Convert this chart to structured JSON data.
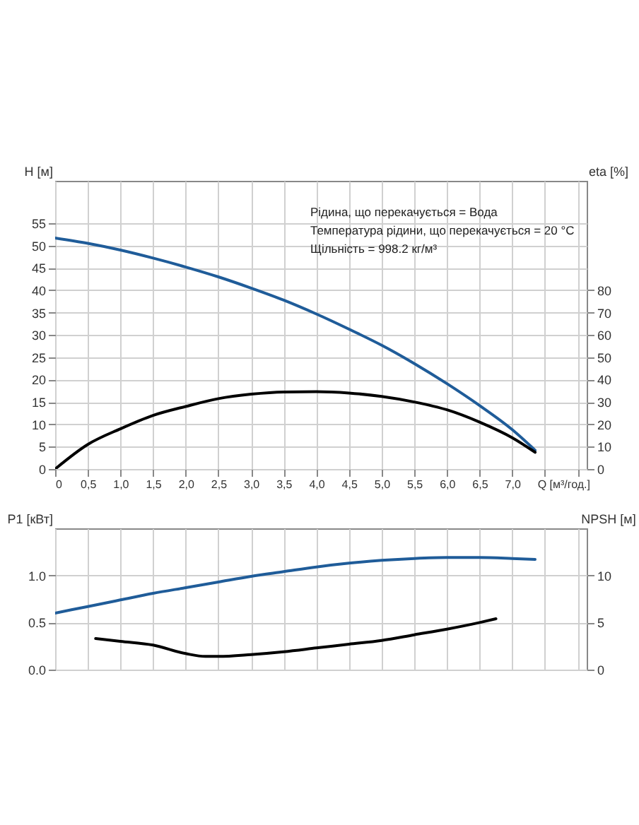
{
  "chart_data": [
    {
      "type": "line",
      "xlabel": "Q [м³/год.]",
      "ylabel": "H [м]",
      "y2label": "eta [%]",
      "grid": true,
      "xlim": [
        0,
        8.14
      ],
      "xticks": [
        0,
        {
          "value": 0.5,
          "label": "0,5"
        },
        {
          "value": 1.0,
          "label": "1,0"
        },
        {
          "value": 1.5,
          "label": "1,5"
        },
        {
          "value": 2.0,
          "label": "2,0"
        },
        {
          "value": 2.5,
          "label": "2,5"
        },
        {
          "value": 3.0,
          "label": "3,0"
        },
        {
          "value": 3.5,
          "label": "3,5"
        },
        {
          "value": 4.0,
          "label": "4,0"
        },
        {
          "value": 4.5,
          "label": "4,5"
        },
        {
          "value": 5.0,
          "label": "5,0"
        },
        {
          "value": 5.5,
          "label": "5,5"
        },
        {
          "value": 6.0,
          "label": "6,0"
        },
        {
          "value": 6.5,
          "label": "6,5"
        },
        {
          "value": 7.0,
          "label": "7,0"
        },
        {
          "value": 7.5,
          "label": null
        },
        {
          "value": 8.0,
          "label": null
        }
      ],
      "ylim": [
        0,
        64.5
      ],
      "yticks": [
        0,
        5,
        10,
        15,
        20,
        25,
        30,
        35,
        40,
        45,
        50,
        55
      ],
      "y2lim": [
        0,
        129
      ],
      "y2ticks": [
        0,
        10,
        20,
        30,
        40,
        50,
        60,
        70,
        80
      ],
      "annotations": [
        "Рідина, що перекачується = Вода",
        "Температура рідини, що перекачується = 20 °C",
        "Щільність = 998.2 кг/м³"
      ],
      "series": [
        {
          "color": "#1f5c99",
          "x": [
            0,
            0.5,
            1.0,
            1.5,
            2.0,
            2.5,
            3.0,
            3.5,
            4.0,
            4.5,
            5.0,
            5.5,
            6.0,
            6.5,
            7.0,
            7.35
          ],
          "values": [
            51.7,
            50.5,
            49,
            47.2,
            45.2,
            43,
            40.5,
            37.8,
            34.7,
            31.3,
            27.7,
            23.6,
            19.1,
            14.2,
            8.8,
            4.2
          ]
        },
        {
          "color": "#000000",
          "axis": "y2",
          "x": [
            0,
            0.5,
            1.0,
            1.5,
            2.0,
            2.5,
            3.0,
            3.5,
            4.0,
            4.5,
            5.0,
            5.5,
            6.0,
            6.5,
            7.0,
            7.35
          ],
          "values": [
            0,
            11,
            18,
            24,
            28,
            31.5,
            33.5,
            34.5,
            34.6,
            34,
            32.5,
            30,
            26.5,
            21,
            14,
            7.5
          ]
        }
      ]
    },
    {
      "type": "line",
      "ylabel": "P1 [кВт]",
      "y2label": "NPSH [м]",
      "grid": true,
      "tick_labels": "y",
      "xlim": [
        0,
        8.14
      ],
      "xticks": [
        0,
        0.5,
        1.0,
        1.5,
        2.0,
        2.5,
        3.0,
        3.5,
        4.0,
        4.5,
        5.0,
        5.5,
        6.0,
        6.5,
        7.0,
        7.5,
        8.0
      ],
      "ylim": [
        0,
        1.5
      ],
      "yticks": [
        {
          "value": 0,
          "label": "0.0"
        },
        {
          "value": 0.5,
          "label": "0.5"
        },
        {
          "value": 1.0,
          "label": "1.0"
        }
      ],
      "y2lim": [
        0,
        15
      ],
      "y2ticks": [
        0,
        5,
        10
      ],
      "series": [
        {
          "color": "#1f5c99",
          "x": [
            0,
            0.5,
            1.0,
            1.5,
            2.0,
            2.5,
            3.0,
            3.5,
            4.0,
            4.5,
            5.0,
            5.5,
            6.0,
            6.5,
            7.0,
            7.35
          ],
          "values": [
            0.6,
            0.67,
            0.74,
            0.81,
            0.87,
            0.93,
            0.99,
            1.04,
            1.09,
            1.13,
            1.16,
            1.18,
            1.19,
            1.19,
            1.18,
            1.17
          ]
        },
        {
          "color": "#000000",
          "axis": "y2",
          "x": [
            0.62,
            1.0,
            1.5,
            2.0,
            2.3,
            2.5,
            3.0,
            3.5,
            4.0,
            4.5,
            5.0,
            5.5,
            6.0,
            6.5,
            6.75
          ],
          "values": [
            3.3,
            3.0,
            2.6,
            1.7,
            1.4,
            1.4,
            1.6,
            1.9,
            2.3,
            2.7,
            3.1,
            3.7,
            4.3,
            5.0,
            5.4
          ]
        }
      ]
    }
  ]
}
